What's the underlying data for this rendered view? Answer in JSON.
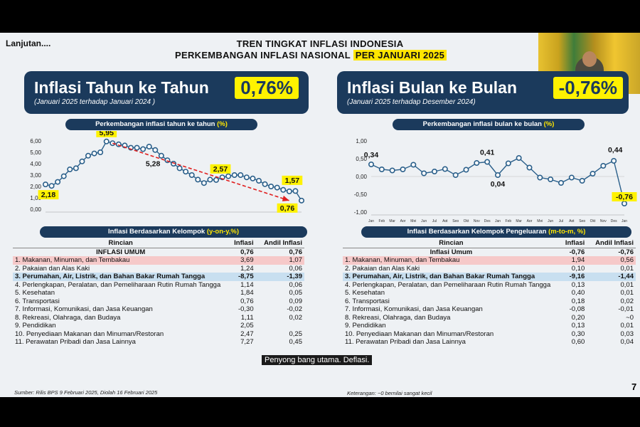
{
  "header": {
    "lanjutan": "Lanjutan....",
    "title_line1": "TREN TINGKAT INFLASI INDONESIA",
    "title_line2_prefix": "PERKEMBANGAN INFLASI NASIONAL ",
    "title_line2_highlight": "PER JANUARI 2025"
  },
  "left_panel": {
    "banner_title": "Inflasi Tahun ke Tahun",
    "banner_sub": "(Januari 2025 terhadap Januari 2024 )",
    "banner_value": "0,76%",
    "chart_title_prefix": "Perkembangan inflasi tahun ke tahun ",
    "chart_title_suffix": "(%)",
    "table_title_prefix": "Inflasi Berdasarkan Kelompok ",
    "table_title_suffix": "(y-on-y,%)",
    "table_headers": [
      "Rincian",
      "Inflasi",
      "Andil Inflasi"
    ],
    "rows": [
      {
        "label": "INFLASI UMUM",
        "inflasi": "0,76",
        "andil": "0,76"
      },
      {
        "label": "1.  Makanan, Minuman, dan Tembakau",
        "inflasi": "3,69",
        "andil": "1,07"
      },
      {
        "label": "2.  Pakaian dan Alas Kaki",
        "inflasi": "1,24",
        "andil": "0,06"
      },
      {
        "label": "3.  Perumahan, Air, Listrik, dan Bahan Bakar Rumah Tangga",
        "inflasi": "-8,75",
        "andil": "-1,39"
      },
      {
        "label": "4.  Perlengkapan, Peralatan, dan Pemeliharaan Rutin Rumah Tangga",
        "inflasi": "1,14",
        "andil": "0,06"
      },
      {
        "label": "5.  Kesehatan",
        "inflasi": "1,84",
        "andil": "0,05"
      },
      {
        "label": "6.  Transportasi",
        "inflasi": "0,76",
        "andil": "0,09"
      },
      {
        "label": "7.  Informasi, Komunikasi, dan Jasa Keuangan",
        "inflasi": "-0,30",
        "andil": "-0,02"
      },
      {
        "label": "8.  Rekreasi, Olahraga, dan Budaya",
        "inflasi": "1,11",
        "andil": "0,02"
      },
      {
        "label": "9.  Pendidikan",
        "inflasi": "2,05",
        "andil": ""
      },
      {
        "label": "10. Penyediaan Makanan dan Minuman/Restoran",
        "inflasi": "2,47",
        "andil": "0,25"
      },
      {
        "label": "11. Perawatan Pribadi dan Jasa Lainnya",
        "inflasi": "7,27",
        "andil": "0,45"
      }
    ],
    "footer": "Sumber: Rilis BPS 9 Februari 2025, Diolah 16 Februari 2025"
  },
  "right_panel": {
    "banner_title": "Inflasi Bulan ke Bulan",
    "banner_sub": "(Januari 2025 terhadap Desember 2024)",
    "banner_value": "-0,76%",
    "chart_title_prefix": "Perkembangan inflasi bulan ke bulan ",
    "chart_title_suffix": "(%)",
    "table_title_prefix": "Inflasi Berdasarkan Kelompok Pengeluaran ",
    "table_title_suffix": "(m-to-m, %)",
    "table_headers": [
      "Rincian",
      "Inflasi",
      "Andil Inflasi"
    ],
    "rows": [
      {
        "label": "Inflasi Umum",
        "inflasi": "-0,76",
        "andil": "-0,76"
      },
      {
        "label": "1.  Makanan, Minuman, dan Tembakau",
        "inflasi": "1,94",
        "andil": "0,56"
      },
      {
        "label": "2.  Pakaian dan Alas Kaki",
        "inflasi": "0,10",
        "andil": "0,01"
      },
      {
        "label": "3.  Perumahan, Air, Listrik, dan Bahan Bakar Rumah Tangga",
        "inflasi": "-9,16",
        "andil": "-1,44"
      },
      {
        "label": "4.  Perlengkapan, Peralatan, dan Pemeliharaan Rutin Rumah Tangga",
        "inflasi": "0,13",
        "andil": "0,01"
      },
      {
        "label": "5.  Kesehatan",
        "inflasi": "0,40",
        "andil": "0,01"
      },
      {
        "label": "6.  Transportasi",
        "inflasi": "0,18",
        "andil": "0,02"
      },
      {
        "label": "7.  Informasi, Komunikasi, dan Jasa Keuangan",
        "inflasi": "-0,08",
        "andil": "-0,01"
      },
      {
        "label": "8.  Rekreasi, Olahraga, dan Budaya",
        "inflasi": "0,20",
        "andil": "~0"
      },
      {
        "label": "9.  Pendidikan",
        "inflasi": "0,13",
        "andil": "0,01"
      },
      {
        "label": "10. Penyediaan Makanan dan Minuman/Restoran",
        "inflasi": "0,30",
        "andil": "0,03"
      },
      {
        "label": "11. Perawatan Pribadi dan Jasa Lainnya",
        "inflasi": "0,60",
        "andil": "0,04"
      }
    ],
    "footer": "Keterangan: ~0 bernilai sangat kecil"
  },
  "page_number": "7",
  "subtitle_caption": "Penyong bang utama. Deflasi.",
  "colors": {
    "navy": "#1b3a5c",
    "yellow": "#fff200",
    "line": "#2a5f8a",
    "arrow": "#e02020",
    "pink_row": "#f6c9c9",
    "blue_row": "#c8dff0"
  },
  "chart_data": [
    {
      "type": "line",
      "yticks": [
        "6,00",
        "5,00",
        "4,00",
        "3,00",
        "2,00",
        "1,00",
        "0,00"
      ],
      "ylim": [
        0,
        6.5
      ],
      "values": [
        2.18,
        2.05,
        2.4,
        2.9,
        3.5,
        3.6,
        4.2,
        4.7,
        4.9,
        5.0,
        5.95,
        5.8,
        5.7,
        5.6,
        5.4,
        5.4,
        5.28,
        5.5,
        5.2,
        4.7,
        4.3,
        4.0,
        3.6,
        3.3,
        3.0,
        2.6,
        2.3,
        2.6,
        2.57,
        2.8,
        2.9,
        3.0,
        3.0,
        2.8,
        2.7,
        2.5,
        2.2,
        2.0,
        1.9,
        1.7,
        1.57,
        1.6,
        0.76
      ],
      "annotations": [
        {
          "index": 0,
          "label": "2,18"
        },
        {
          "index": 10,
          "label": "5,95"
        },
        {
          "index": 16,
          "label": "5,28"
        },
        {
          "index": 28,
          "label": "2,57"
        },
        {
          "index": 40,
          "label": "1,57"
        },
        {
          "index": 42,
          "label": "0,76"
        }
      ]
    },
    {
      "type": "line",
      "yticks": [
        "1,00",
        "0,50",
        "0,00",
        "-0,50",
        "-1,00"
      ],
      "ylim": [
        -1,
        1
      ],
      "categories": [
        "Jan",
        "Feb",
        "Mar",
        "Apr",
        "Mei",
        "Jun",
        "Jul",
        "Agt",
        "Sep",
        "Okt",
        "Nov",
        "Des",
        "Jan",
        "Feb",
        "Mar",
        "Apr",
        "Mei",
        "Jun",
        "Jul",
        "Agt",
        "Sep",
        "Okt",
        "Nov",
        "Des",
        "Jan"
      ],
      "values": [
        0.34,
        0.2,
        0.17,
        0.2,
        0.33,
        0.09,
        0.14,
        0.21,
        0.04,
        0.19,
        0.38,
        0.41,
        0.04,
        0.37,
        0.52,
        0.25,
        -0.03,
        -0.08,
        -0.18,
        -0.03,
        -0.12,
        0.08,
        0.3,
        0.44,
        -0.76
      ],
      "annotations": [
        {
          "index": 0,
          "label": "0,34"
        },
        {
          "index": 11,
          "label": "0,41"
        },
        {
          "index": 12,
          "label": "0,04"
        },
        {
          "index": 23,
          "label": "0,44"
        },
        {
          "index": 24,
          "label": "-0,76"
        }
      ]
    }
  ]
}
